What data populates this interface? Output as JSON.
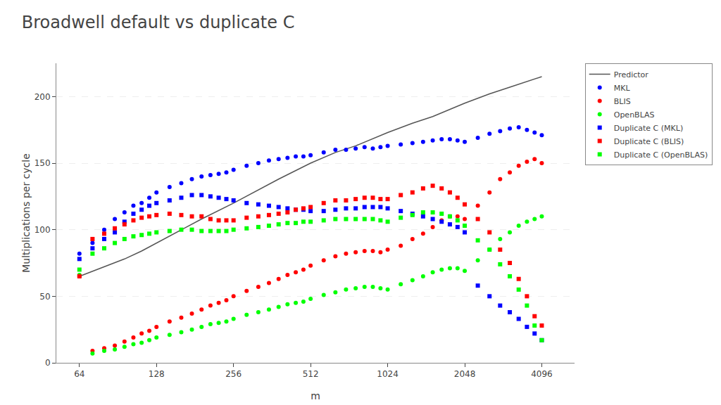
{
  "chart_data": {
    "type": "scatter",
    "title": "Broadwell default vs duplicate C",
    "x_label": "m",
    "y_label": "Multiplications per cycle",
    "log": "x",
    "grid": "y",
    "legend": "right",
    "xlim": [
      52,
      5500
    ],
    "xticks": [
      64,
      128,
      256,
      512,
      1024,
      2048,
      4096
    ],
    "ylim": [
      0,
      225
    ],
    "yticks": [
      0,
      50,
      100,
      150,
      200
    ],
    "series": [
      {
        "name": "Predictor",
        "type": "line",
        "color": "#555555",
        "line_style": "solid",
        "x": [
          64,
          80,
          96,
          112,
          128,
          160,
          192,
          256,
          320,
          384,
          512,
          640,
          768,
          1024,
          1280,
          1536,
          2048,
          2560,
          3072,
          4096
        ],
        "values": [
          65,
          72,
          78,
          84,
          90,
          100,
          108,
          120,
          130,
          138,
          150,
          158,
          163,
          173,
          180,
          185,
          195,
          202,
          207,
          215
        ]
      },
      {
        "name": "MKL",
        "type": "scatter",
        "color": "blue",
        "marker": "circle",
        "x": [
          64,
          72,
          80,
          88,
          96,
          104,
          112,
          120,
          128,
          144,
          160,
          176,
          192,
          208,
          224,
          240,
          256,
          288,
          320,
          352,
          384,
          416,
          448,
          480,
          512,
          576,
          640,
          704,
          768,
          832,
          896,
          960,
          1024,
          1152,
          1280,
          1408,
          1536,
          1664,
          1792,
          1920,
          2048,
          2304,
          2560,
          2816,
          3072,
          3328,
          3584,
          3840,
          4096
        ],
        "values": [
          82,
          90,
          100,
          108,
          113,
          118,
          120,
          124,
          128,
          132,
          135,
          138,
          140,
          141,
          142,
          143,
          145,
          148,
          150,
          152,
          153,
          154,
          155,
          155,
          156,
          158,
          160,
          160,
          161,
          162,
          161,
          162,
          163,
          164,
          165,
          166,
          167,
          168,
          168,
          167,
          166,
          169,
          172,
          174,
          176,
          177,
          175,
          173,
          171
        ]
      },
      {
        "name": "BLIS",
        "type": "scatter",
        "color": "red",
        "marker": "circle",
        "x": [
          64,
          72,
          80,
          88,
          96,
          104,
          112,
          120,
          128,
          144,
          160,
          176,
          192,
          208,
          224,
          240,
          256,
          288,
          320,
          352,
          384,
          416,
          448,
          480,
          512,
          576,
          640,
          704,
          768,
          832,
          896,
          960,
          1024,
          1152,
          1280,
          1408,
          1536,
          1664,
          1792,
          1920,
          2048,
          2304,
          2560,
          2816,
          3072,
          3328,
          3584,
          3840,
          4096
        ],
        "values": [
          65,
          9,
          11,
          13,
          16,
          19,
          22,
          24,
          27,
          31,
          34,
          37,
          40,
          43,
          45,
          47,
          50,
          54,
          57,
          60,
          63,
          66,
          68,
          70,
          73,
          77,
          80,
          82,
          83,
          84,
          84,
          83,
          85,
          88,
          93,
          97,
          102,
          107,
          110,
          110,
          108,
          118,
          128,
          138,
          143,
          148,
          151,
          153,
          150
        ]
      },
      {
        "name": "OpenBLAS",
        "type": "scatter",
        "color": "lime",
        "marker": "circle",
        "x": [
          64,
          72,
          80,
          88,
          96,
          104,
          112,
          120,
          128,
          144,
          160,
          176,
          192,
          208,
          224,
          240,
          256,
          288,
          320,
          352,
          384,
          416,
          448,
          480,
          512,
          576,
          640,
          704,
          768,
          832,
          896,
          960,
          1024,
          1152,
          1280,
          1408,
          1536,
          1664,
          1792,
          1920,
          2048,
          2304,
          2560,
          2816,
          3072,
          3328,
          3584,
          3840,
          4096
        ],
        "values": [
          66,
          7,
          9,
          10,
          12,
          14,
          15,
          17,
          19,
          21,
          23,
          25,
          27,
          29,
          30,
          31,
          33,
          36,
          38,
          40,
          42,
          44,
          45,
          46,
          48,
          51,
          53,
          55,
          56,
          57,
          57,
          56,
          55,
          59,
          62,
          65,
          68,
          70,
          71,
          71,
          69,
          77,
          85,
          93,
          98,
          103,
          106,
          108,
          110
        ]
      },
      {
        "name": "Duplicate C (MKL)",
        "type": "scatter",
        "color": "blue",
        "marker": "square",
        "x": [
          64,
          72,
          80,
          88,
          96,
          104,
          112,
          120,
          128,
          144,
          160,
          176,
          192,
          208,
          224,
          240,
          256,
          288,
          320,
          352,
          384,
          416,
          448,
          480,
          512,
          576,
          640,
          704,
          768,
          832,
          896,
          960,
          1024,
          1152,
          1280,
          1408,
          1536,
          1664,
          1792,
          1920,
          2048,
          2304,
          2560,
          2816,
          3072,
          3328,
          3584,
          3840,
          4096
        ],
        "values": [
          78,
          86,
          93,
          98,
          106,
          112,
          115,
          118,
          120,
          122,
          124,
          126,
          126,
          125,
          124,
          123,
          122,
          120,
          119,
          118,
          117,
          116,
          115,
          115,
          114,
          114,
          115,
          116,
          116,
          117,
          117,
          117,
          116,
          114,
          112,
          110,
          108,
          106,
          104,
          102,
          98,
          58,
          50,
          43,
          38,
          33,
          27,
          22,
          17
        ]
      },
      {
        "name": "Duplicate C (BLIS)",
        "type": "scatter",
        "color": "red",
        "marker": "square",
        "x": [
          64,
          72,
          80,
          88,
          96,
          104,
          112,
          120,
          128,
          144,
          160,
          176,
          192,
          208,
          224,
          240,
          256,
          288,
          320,
          352,
          384,
          416,
          448,
          480,
          512,
          576,
          640,
          704,
          768,
          832,
          896,
          960,
          1024,
          1152,
          1280,
          1408,
          1536,
          1664,
          1792,
          1920,
          2048,
          2304,
          2560,
          2816,
          3072,
          3328,
          3584,
          3840,
          4096
        ],
        "values": [
          65,
          93,
          97,
          101,
          104,
          107,
          109,
          110,
          111,
          112,
          111,
          110,
          110,
          108,
          107,
          107,
          107,
          109,
          110,
          111,
          112,
          113,
          115,
          116,
          117,
          120,
          122,
          122,
          123,
          124,
          124,
          123,
          123,
          126,
          128,
          131,
          133,
          131,
          128,
          124,
          119,
          108,
          98,
          85,
          75,
          63,
          50,
          35,
          28
        ]
      },
      {
        "name": "Duplicate C (OpenBLAS)",
        "type": "scatter",
        "color": "lime",
        "marker": "square",
        "x": [
          64,
          72,
          80,
          88,
          96,
          104,
          112,
          120,
          128,
          144,
          160,
          176,
          192,
          208,
          224,
          240,
          256,
          288,
          320,
          352,
          384,
          416,
          448,
          480,
          512,
          576,
          640,
          704,
          768,
          832,
          896,
          960,
          1024,
          1152,
          1280,
          1408,
          1536,
          1664,
          1792,
          1920,
          2048,
          2304,
          2560,
          2816,
          3072,
          3328,
          3584,
          3840,
          4096
        ],
        "values": [
          70,
          82,
          86,
          90,
          93,
          95,
          96,
          97,
          98,
          99,
          100,
          100,
          99,
          99,
          99,
          99,
          100,
          101,
          102,
          103,
          104,
          105,
          105,
          106,
          106,
          107,
          108,
          108,
          108,
          108,
          108,
          107,
          106,
          109,
          111,
          113,
          113,
          112,
          110,
          107,
          103,
          92,
          85,
          74,
          65,
          55,
          43,
          28,
          17
        ]
      }
    ]
  }
}
